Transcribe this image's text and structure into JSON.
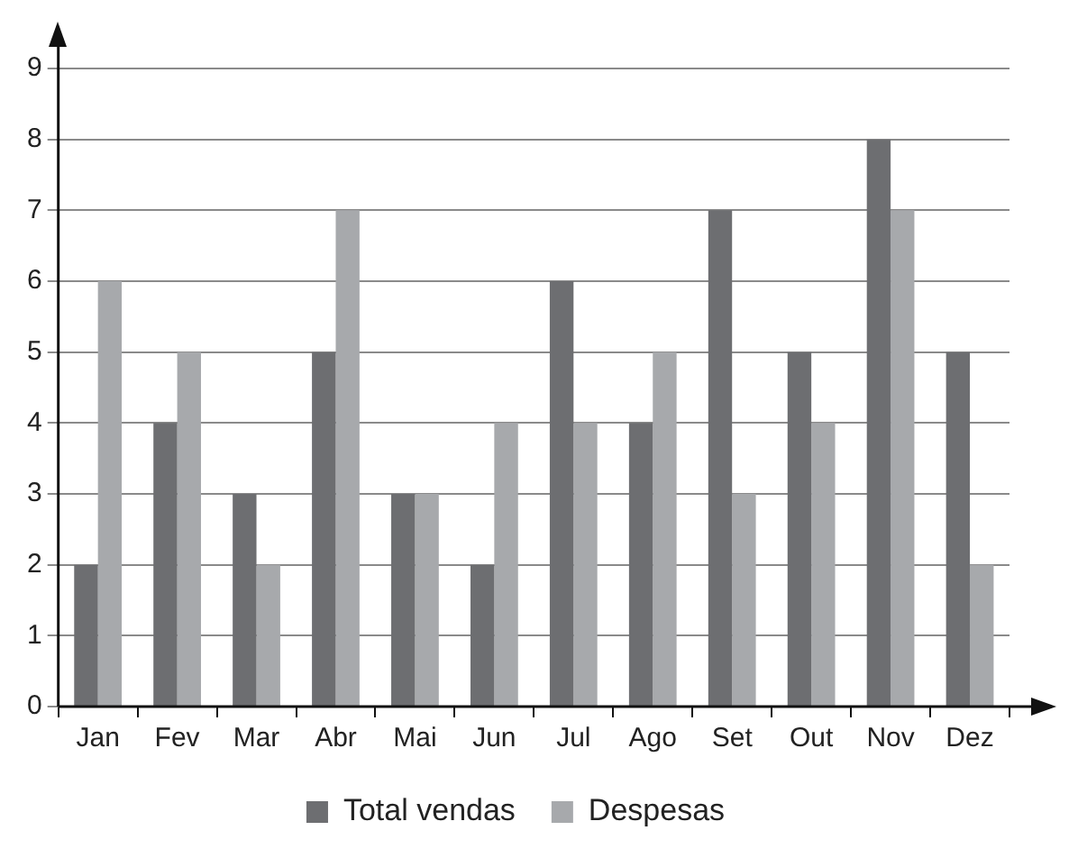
{
  "chart_data": {
    "type": "bar",
    "categories": [
      "Jan",
      "Fev",
      "Mar",
      "Abr",
      "Mai",
      "Jun",
      "Jul",
      "Ago",
      "Set",
      "Out",
      "Nov",
      "Dez"
    ],
    "series": [
      {
        "name": "Total vendas",
        "color": "#6d6e71",
        "values": [
          2,
          4,
          3,
          5,
          3,
          2,
          6,
          4,
          7,
          5,
          8,
          5
        ]
      },
      {
        "name": "Despesas",
        "color": "#a7a9ac",
        "values": [
          6,
          5,
          2,
          7,
          3,
          4,
          4,
          5,
          3,
          4,
          7,
          2
        ]
      }
    ],
    "ylim": [
      0,
      9
    ],
    "yticks": [
      0,
      1,
      2,
      3,
      4,
      5,
      6,
      7,
      8,
      9
    ],
    "grid": "y",
    "legend": "bottom"
  }
}
